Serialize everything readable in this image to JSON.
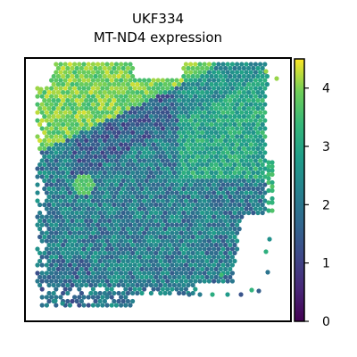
{
  "chart_data": {
    "type": "scatter",
    "title_line1": "UKF334",
    "title_line2": "MT-ND4 expression",
    "xlabel": "",
    "ylabel": "",
    "grid": false,
    "marker": "hexagon",
    "colormap": "viridis",
    "colorbar": {
      "range": [
        0,
        4.5
      ],
      "ticks": [
        0,
        1,
        2,
        3,
        4
      ],
      "tick_labels": [
        "0",
        "1",
        "2",
        "3",
        "4"
      ]
    },
    "spatial_pattern": [
      {
        "region": "upper-left band",
        "typical_value": 4.0
      },
      {
        "region": "top-right band",
        "typical_value": 3.2
      },
      {
        "region": "central band",
        "typical_value": 2.0
      },
      {
        "region": "left middle",
        "typical_value": 2.3
      },
      {
        "region": "lower-left",
        "typical_value": 1.8
      },
      {
        "region": "right edge column",
        "typical_value": 3.4
      }
    ]
  }
}
